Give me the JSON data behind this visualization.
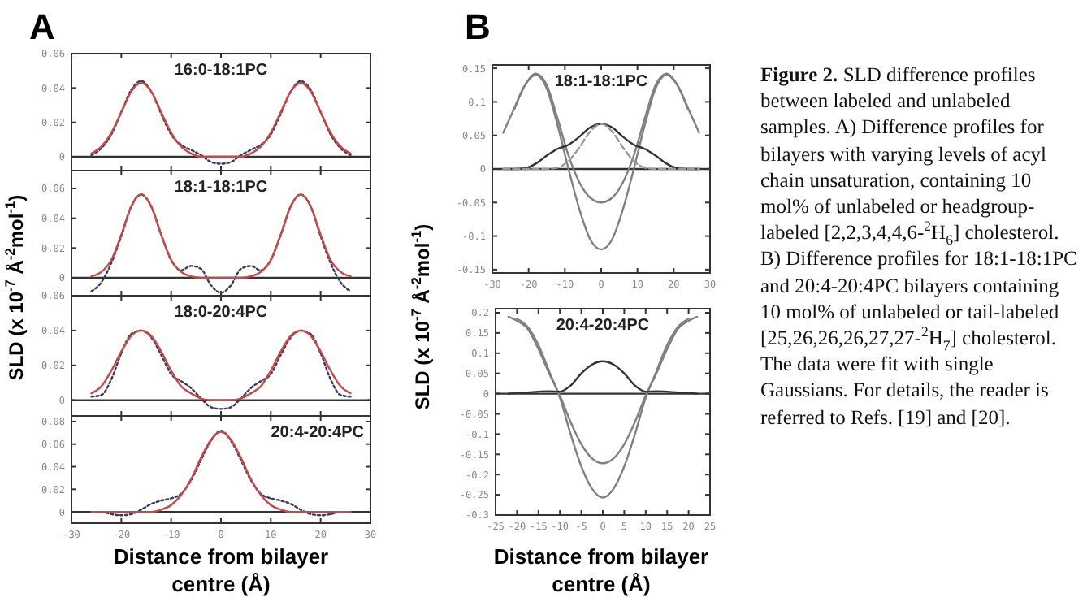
{
  "chart_data": [
    {
      "type": "line",
      "title": "16:0-18:1PC",
      "annotations": [
        "A"
      ],
      "ylabel": "SLD (x 10$^{-7}$ Å$^{-2}$mol$^{-1}$)",
      "x": [
        -26,
        -24,
        -22,
        -20,
        -18,
        -16,
        -14,
        -12,
        -10,
        -8,
        -6,
        -4,
        -2,
        0,
        2,
        4,
        6,
        8,
        10,
        12,
        14,
        16,
        18,
        20,
        22,
        24,
        26
      ],
      "xlim": [
        -30,
        30
      ],
      "xticks": [
        -30,
        -20,
        -10,
        0,
        10,
        20,
        30
      ],
      "ylim": [
        -0.008,
        0.06
      ],
      "yticks": [
        0,
        0.02,
        0.04,
        0.06
      ],
      "tick_labels": "y",
      "marker": "none",
      "ref_lines": [
        {
          "axis": "y",
          "value": 0,
          "color": "#333333"
        }
      ],
      "series": [
        {
          "color": "#3a3a5a",
          "line_style": "dotted",
          "values": [
            0.001,
            0.005,
            0.013,
            0.026,
            0.039,
            0.044,
            0.038,
            0.025,
            0.013,
            0.007,
            0.004,
            0.001,
            -0.003,
            -0.004,
            -0.003,
            0.001,
            0.004,
            0.007,
            0.013,
            0.025,
            0.038,
            0.044,
            0.039,
            0.026,
            0.013,
            0.005,
            0.001
          ]
        },
        {
          "color": "#c84848",
          "line_style": "solid",
          "values": [
            0.002,
            0.006,
            0.014,
            0.026,
            0.038,
            0.043,
            0.038,
            0.026,
            0.014,
            0.006,
            0.002,
            0,
            0,
            0,
            0,
            0,
            0.002,
            0.006,
            0.014,
            0.026,
            0.038,
            0.043,
            0.038,
            0.026,
            0.014,
            0.006,
            0.002
          ]
        }
      ]
    },
    {
      "type": "line",
      "title": "18:1-18:1PC",
      "x": [
        -26,
        -24,
        -22,
        -20,
        -18,
        -16,
        -14,
        -12,
        -10,
        -8,
        -6,
        -4,
        -2,
        0,
        2,
        4,
        6,
        8,
        10,
        12,
        14,
        16,
        18,
        20,
        22,
        24,
        26
      ],
      "xlim": [
        -30,
        30
      ],
      "xticks": [
        -30,
        -20,
        -10,
        0,
        10,
        20,
        30
      ],
      "ylim": [
        -0.012,
        0.072
      ],
      "yticks": [
        0,
        0.02,
        0.04,
        0.06
      ],
      "tick_labels": "y",
      "marker": "none",
      "ref_lines": [
        {
          "axis": "y",
          "value": 0,
          "color": "#333333"
        }
      ],
      "series": [
        {
          "color": "#3a3a5a",
          "line_style": "dotted",
          "values": [
            -0.009,
            -0.003,
            0.01,
            0.028,
            0.048,
            0.056,
            0.048,
            0.029,
            0.012,
            0.005,
            0.008,
            0.006,
            -0.005,
            -0.01,
            -0.005,
            0.006,
            0.008,
            0.005,
            0.012,
            0.029,
            0.048,
            0.056,
            0.048,
            0.028,
            0.01,
            -0.003,
            -0.009
          ]
        },
        {
          "color": "#c84848",
          "line_style": "solid",
          "values": [
            0.001,
            0.004,
            0.012,
            0.029,
            0.048,
            0.056,
            0.048,
            0.029,
            0.012,
            0.004,
            0.001,
            0,
            0,
            0,
            0,
            0,
            0.001,
            0.004,
            0.012,
            0.029,
            0.048,
            0.056,
            0.048,
            0.029,
            0.012,
            0.004,
            0.001
          ]
        }
      ]
    },
    {
      "type": "line",
      "title": "18:0-20:4PC",
      "x": [
        -26,
        -24,
        -22,
        -20,
        -18,
        -16,
        -14,
        -12,
        -10,
        -8,
        -6,
        -4,
        -2,
        0,
        2,
        4,
        6,
        8,
        10,
        12,
        14,
        16,
        18,
        20,
        22,
        24,
        26
      ],
      "xlim": [
        -30,
        30
      ],
      "xticks": [
        -30,
        -20,
        -10,
        0,
        10,
        20,
        30
      ],
      "ylim": [
        -0.009,
        0.06
      ],
      "yticks": [
        0,
        0.02,
        0.04,
        0.06
      ],
      "tick_labels": "y",
      "marker": "none",
      "ref_lines": [
        {
          "axis": "y",
          "value": 0,
          "color": "#333333"
        }
      ],
      "series": [
        {
          "color": "#3a3a5a",
          "line_style": "dotted",
          "values": [
            0.002,
            0.003,
            0.012,
            0.027,
            0.038,
            0.04,
            0.036,
            0.026,
            0.015,
            0.011,
            0.007,
            0.001,
            -0.004,
            -0.005,
            -0.004,
            0.001,
            0.007,
            0.011,
            0.015,
            0.026,
            0.036,
            0.04,
            0.038,
            0.027,
            0.012,
            0.003,
            0.002
          ]
        },
        {
          "color": "#c84848",
          "line_style": "solid",
          "values": [
            0.004,
            0.008,
            0.017,
            0.028,
            0.037,
            0.04,
            0.037,
            0.028,
            0.017,
            0.008,
            0.004,
            0.001,
            0,
            0,
            0,
            0.001,
            0.004,
            0.008,
            0.017,
            0.028,
            0.037,
            0.04,
            0.037,
            0.028,
            0.017,
            0.008,
            0.004
          ]
        }
      ]
    },
    {
      "type": "line",
      "title": "20:4-20:4PC",
      "xlabel": "Distance from bilayer centre (Å)",
      "x": [
        -26,
        -24,
        -22,
        -20,
        -18,
        -16,
        -14,
        -12,
        -10,
        -8,
        -6,
        -4,
        -2,
        0,
        2,
        4,
        6,
        8,
        10,
        12,
        14,
        16,
        18,
        20,
        22,
        24,
        26
      ],
      "xlim": [
        -30,
        30
      ],
      "xticks": [
        -30,
        -20,
        -10,
        0,
        10,
        20,
        30
      ],
      "ylim": [
        -0.01,
        0.085
      ],
      "yticks": [
        0,
        0.02,
        0.04,
        0.06,
        0.08
      ],
      "marker": "none",
      "ref_lines": [
        {
          "axis": "y",
          "value": 0,
          "color": "#333333"
        }
      ],
      "series": [
        {
          "color": "#3a3a5a",
          "line_style": "dotted",
          "values": [
            0,
            0,
            -0.002,
            -0.003,
            -0.002,
            0.002,
            0.007,
            0.01,
            0.012,
            0.016,
            0.028,
            0.046,
            0.063,
            0.072,
            0.063,
            0.046,
            0.028,
            0.016,
            0.012,
            0.01,
            0.007,
            0.002,
            -0.002,
            -0.003,
            -0.002,
            0,
            0
          ]
        },
        {
          "color": "#c84848",
          "line_style": "solid",
          "values": [
            0,
            0,
            0,
            0,
            0,
            0,
            0,
            0.002,
            0.006,
            0.015,
            0.029,
            0.048,
            0.064,
            0.071,
            0.064,
            0.048,
            0.029,
            0.015,
            0.006,
            0.002,
            0,
            0,
            0,
            0,
            0,
            0,
            0
          ]
        }
      ]
    },
    {
      "type": "line",
      "title": "18:1-18:1PC",
      "annotations": [
        "B"
      ],
      "ylabel": "SLD (x 10$^{-7}$ Å$^{-2}$mol$^{-1}$)",
      "x": [
        -27,
        -24,
        -21,
        -18,
        -15,
        -12,
        -9,
        -6,
        -3,
        0,
        3,
        6,
        9,
        12,
        15,
        18,
        21,
        24,
        27
      ],
      "xlim": [
        -30,
        30
      ],
      "xticks": [
        -30,
        -20,
        -10,
        0,
        10,
        20,
        30
      ],
      "ylim": [
        -0.155,
        0.155
      ],
      "yticks": [
        -0.15,
        -0.1,
        -0.05,
        0,
        0.05,
        0.1,
        0.15
      ],
      "marker": "none",
      "ref_lines": [
        {
          "axis": "y",
          "value": 0,
          "color": "#333333"
        }
      ],
      "series": [
        {
          "color": "#808080",
          "line_style": "solid",
          "values": [
            0.054,
            0.09,
            0.125,
            0.142,
            0.125,
            0.075,
            0.02,
            -0.02,
            -0.043,
            -0.05,
            -0.043,
            -0.02,
            0.02,
            0.075,
            0.125,
            0.142,
            0.125,
            0.09,
            0.054
          ]
        },
        {
          "color": "#808080",
          "line_style": "solid",
          "values": [
            null,
            0.088,
            0.125,
            0.14,
            0.12,
            0.065,
            0,
            -0.06,
            -0.105,
            -0.12,
            -0.105,
            -0.06,
            0,
            0.065,
            0.12,
            0.14,
            0.125,
            0.088,
            null
          ]
        },
        {
          "color": "#333333",
          "line_style": "solid",
          "values": [
            0,
            0,
            0.001,
            0.008,
            0.02,
            0.03,
            0.036,
            0.048,
            0.062,
            0.067,
            0.062,
            0.048,
            0.036,
            0.03,
            0.02,
            0.008,
            0.001,
            0,
            0
          ]
        },
        {
          "color": "#999999",
          "line_style": "dashed",
          "values": [
            0,
            0,
            0,
            0,
            0,
            0.002,
            0.012,
            0.032,
            0.056,
            0.067,
            0.056,
            0.032,
            0.012,
            0.002,
            0,
            0,
            0,
            0,
            0
          ]
        }
      ]
    },
    {
      "type": "line",
      "title": "20:4-20:4PC",
      "xlabel": "Distance from bilayer centre (Å)",
      "x": [
        -22,
        -20,
        -17.5,
        -15,
        -12.5,
        -10,
        -7.5,
        -5,
        -2.5,
        0,
        2.5,
        5,
        7.5,
        10,
        12.5,
        15,
        17.5,
        20,
        22
      ],
      "xlim": [
        -25,
        25
      ],
      "xticks": [
        -25,
        -20,
        -15,
        -10,
        -5,
        0,
        5,
        10,
        15,
        20,
        25
      ],
      "ylim": [
        -0.3,
        0.21
      ],
      "yticks": [
        -0.3,
        -0.25,
        -0.2,
        -0.15,
        -0.1,
        -0.05,
        0,
        0.05,
        0.1,
        0.15,
        0.2
      ],
      "marker": "none",
      "ref_lines": [
        {
          "axis": "y",
          "value": 0,
          "color": "#333333"
        }
      ],
      "series": [
        {
          "color": "#808080",
          "line_style": "solid",
          "values": [
            0.19,
            0.18,
            0.16,
            0.11,
            0.05,
            -0.005,
            -0.07,
            -0.125,
            -0.16,
            -0.172,
            -0.16,
            -0.125,
            -0.07,
            -0.005,
            0.05,
            0.11,
            0.16,
            0.18,
            0.19
          ]
        },
        {
          "color": "#808080",
          "line_style": "solid",
          "values": [
            null,
            0.185,
            0.165,
            0.12,
            0.055,
            -0.01,
            -0.1,
            -0.18,
            -0.235,
            -0.257,
            -0.235,
            -0.18,
            -0.1,
            -0.01,
            0.055,
            0.12,
            0.165,
            0.185,
            null
          ]
        },
        {
          "color": "#333333",
          "line_style": "solid",
          "values": [
            0,
            0.002,
            0.003,
            0.005,
            0.006,
            0.005,
            0.02,
            0.05,
            0.072,
            0.08,
            0.072,
            0.05,
            0.02,
            0.005,
            0.006,
            0.005,
            0.003,
            0.002,
            0
          ]
        }
      ]
    },
    {
      "type": "other",
      "annotations": [
        "Figure 2.",
        "SLD difference profiles between labeled and unlabeled samples. A) Difference profiles for bilayers with varying levels of acyl chain unsaturation, containing 10 mol% of unlabeled or headgroup-labeled [2,2,3,4,4,6-$^{2}$H$_{6}$] cholesterol. B) Difference profiles for 18:1-18:1PC and 20:4-20:4PC bilayers containing 10 mol% of unlabeled or tail-labeled [25,26,26,26,27,27-$^{2}$H$_{7}$] cholesterol. The data were fit with single Gaussians. For details, the reader is referred to Refs. [19] and [20]."
      ]
    }
  ]
}
